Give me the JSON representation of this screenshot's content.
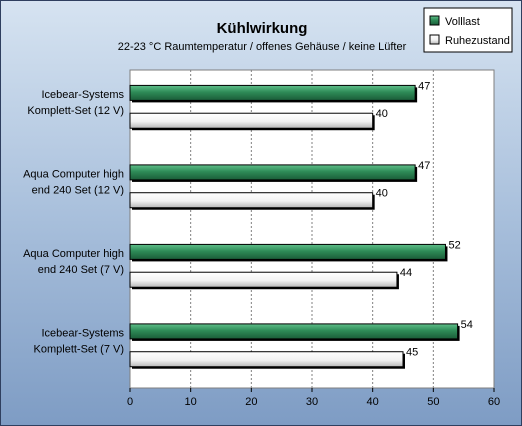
{
  "chart_data": {
    "type": "bar",
    "orientation": "horizontal",
    "title": "Kühlwirkung",
    "subtitle": "22-23 °C Raumtemperatur / offenes Gehäuse / keine Lüfter",
    "categories": [
      [
        "Icebear-Systems",
        "Komplett-Set (12 V)"
      ],
      [
        "Aqua Computer high",
        "end 240 Set (12 V)"
      ],
      [
        "Aqua Computer high",
        "end 240 Set (7 V)"
      ],
      [
        "Icebear-Systems",
        "Komplett-Set (7 V)"
      ]
    ],
    "series": [
      {
        "name": "Volllast",
        "values": [
          47,
          47,
          52,
          54
        ]
      },
      {
        "name": "Ruhezustand",
        "values": [
          40,
          40,
          44,
          45
        ]
      }
    ],
    "xlim": [
      0,
      60
    ],
    "xticks": [
      0,
      10,
      20,
      30,
      40,
      50,
      60
    ],
    "xlabel": "",
    "ylabel": "",
    "grid": "vertical",
    "legend": "top-right",
    "colors": {
      "Volllast": "#2e8b57",
      "Ruhezustand": "#ffffff"
    }
  }
}
